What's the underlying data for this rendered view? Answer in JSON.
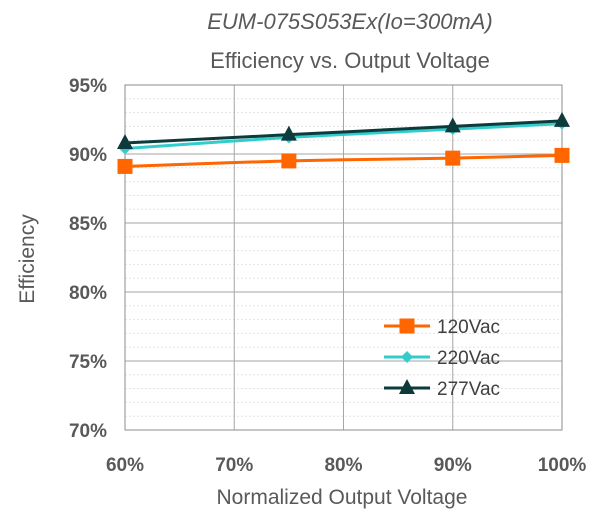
{
  "chart_data": {
    "type": "line",
    "title": "Efficiency vs. Output Voltage",
    "subtitle": "EUM-075S053Ex(Io=300mA)",
    "xlabel": "Normalized Output Voltage",
    "ylabel": "Efficiency",
    "x": [
      60,
      75,
      90,
      100
    ],
    "xlim": [
      60,
      100
    ],
    "ylim": [
      70,
      95
    ],
    "x_ticks": [
      "60%",
      "70%",
      "80%",
      "90%",
      "100%"
    ],
    "y_ticks": [
      "70%",
      "75%",
      "80%",
      "85%",
      "90%",
      "95%"
    ],
    "grid": true,
    "legend_position": "bottom-right",
    "series": [
      {
        "name": "120Vac",
        "values": [
          89.1,
          89.5,
          89.7,
          89.9
        ],
        "color": "#FF6600",
        "marker": "square"
      },
      {
        "name": "220Vac",
        "values": [
          90.4,
          91.2,
          91.8,
          92.2
        ],
        "color": "#33CCCC",
        "marker": "diamond"
      },
      {
        "name": "277Vac",
        "values": [
          90.8,
          91.4,
          92.0,
          92.4
        ],
        "color": "#0D3B3B",
        "marker": "triangle"
      }
    ]
  }
}
